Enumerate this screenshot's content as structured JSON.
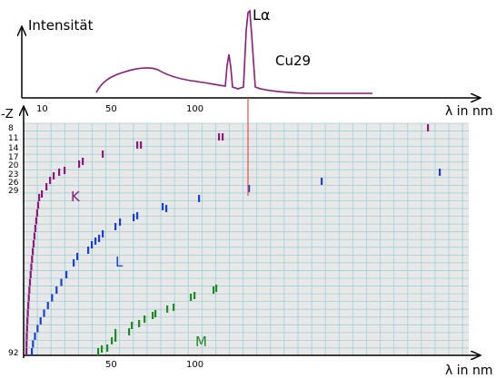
{
  "chart_data": [
    {
      "type": "line",
      "ylabel": "Intensität",
      "xlabel": "λ in nm",
      "element_label": "Cu29",
      "peak_label": "Lα",
      "x_ticks": [
        "10",
        "50",
        "100"
      ],
      "curve_color": "#8b1a7a"
    },
    {
      "type": "scatter",
      "ylabel": "Z",
      "ylabel_prefix": "-",
      "xlabel": "λ in nm",
      "x_ticks": [
        "50",
        "100"
      ],
      "y_ticks": [
        "8",
        "11",
        "14",
        "17",
        "20",
        "23",
        "26",
        "29",
        "92"
      ],
      "series": [
        {
          "name": "K",
          "color": "#8b1a7a"
        },
        {
          "name": "L",
          "color": "#1a3fd6"
        },
        {
          "name": "M",
          "color": "#1f8a2a"
        }
      ],
      "grid": true,
      "grid_color": "#9fd0d6"
    }
  ],
  "colors": {
    "background_grid_fill": "#e8e8e8",
    "marker_line": "#e05050",
    "axis": "#000000"
  }
}
